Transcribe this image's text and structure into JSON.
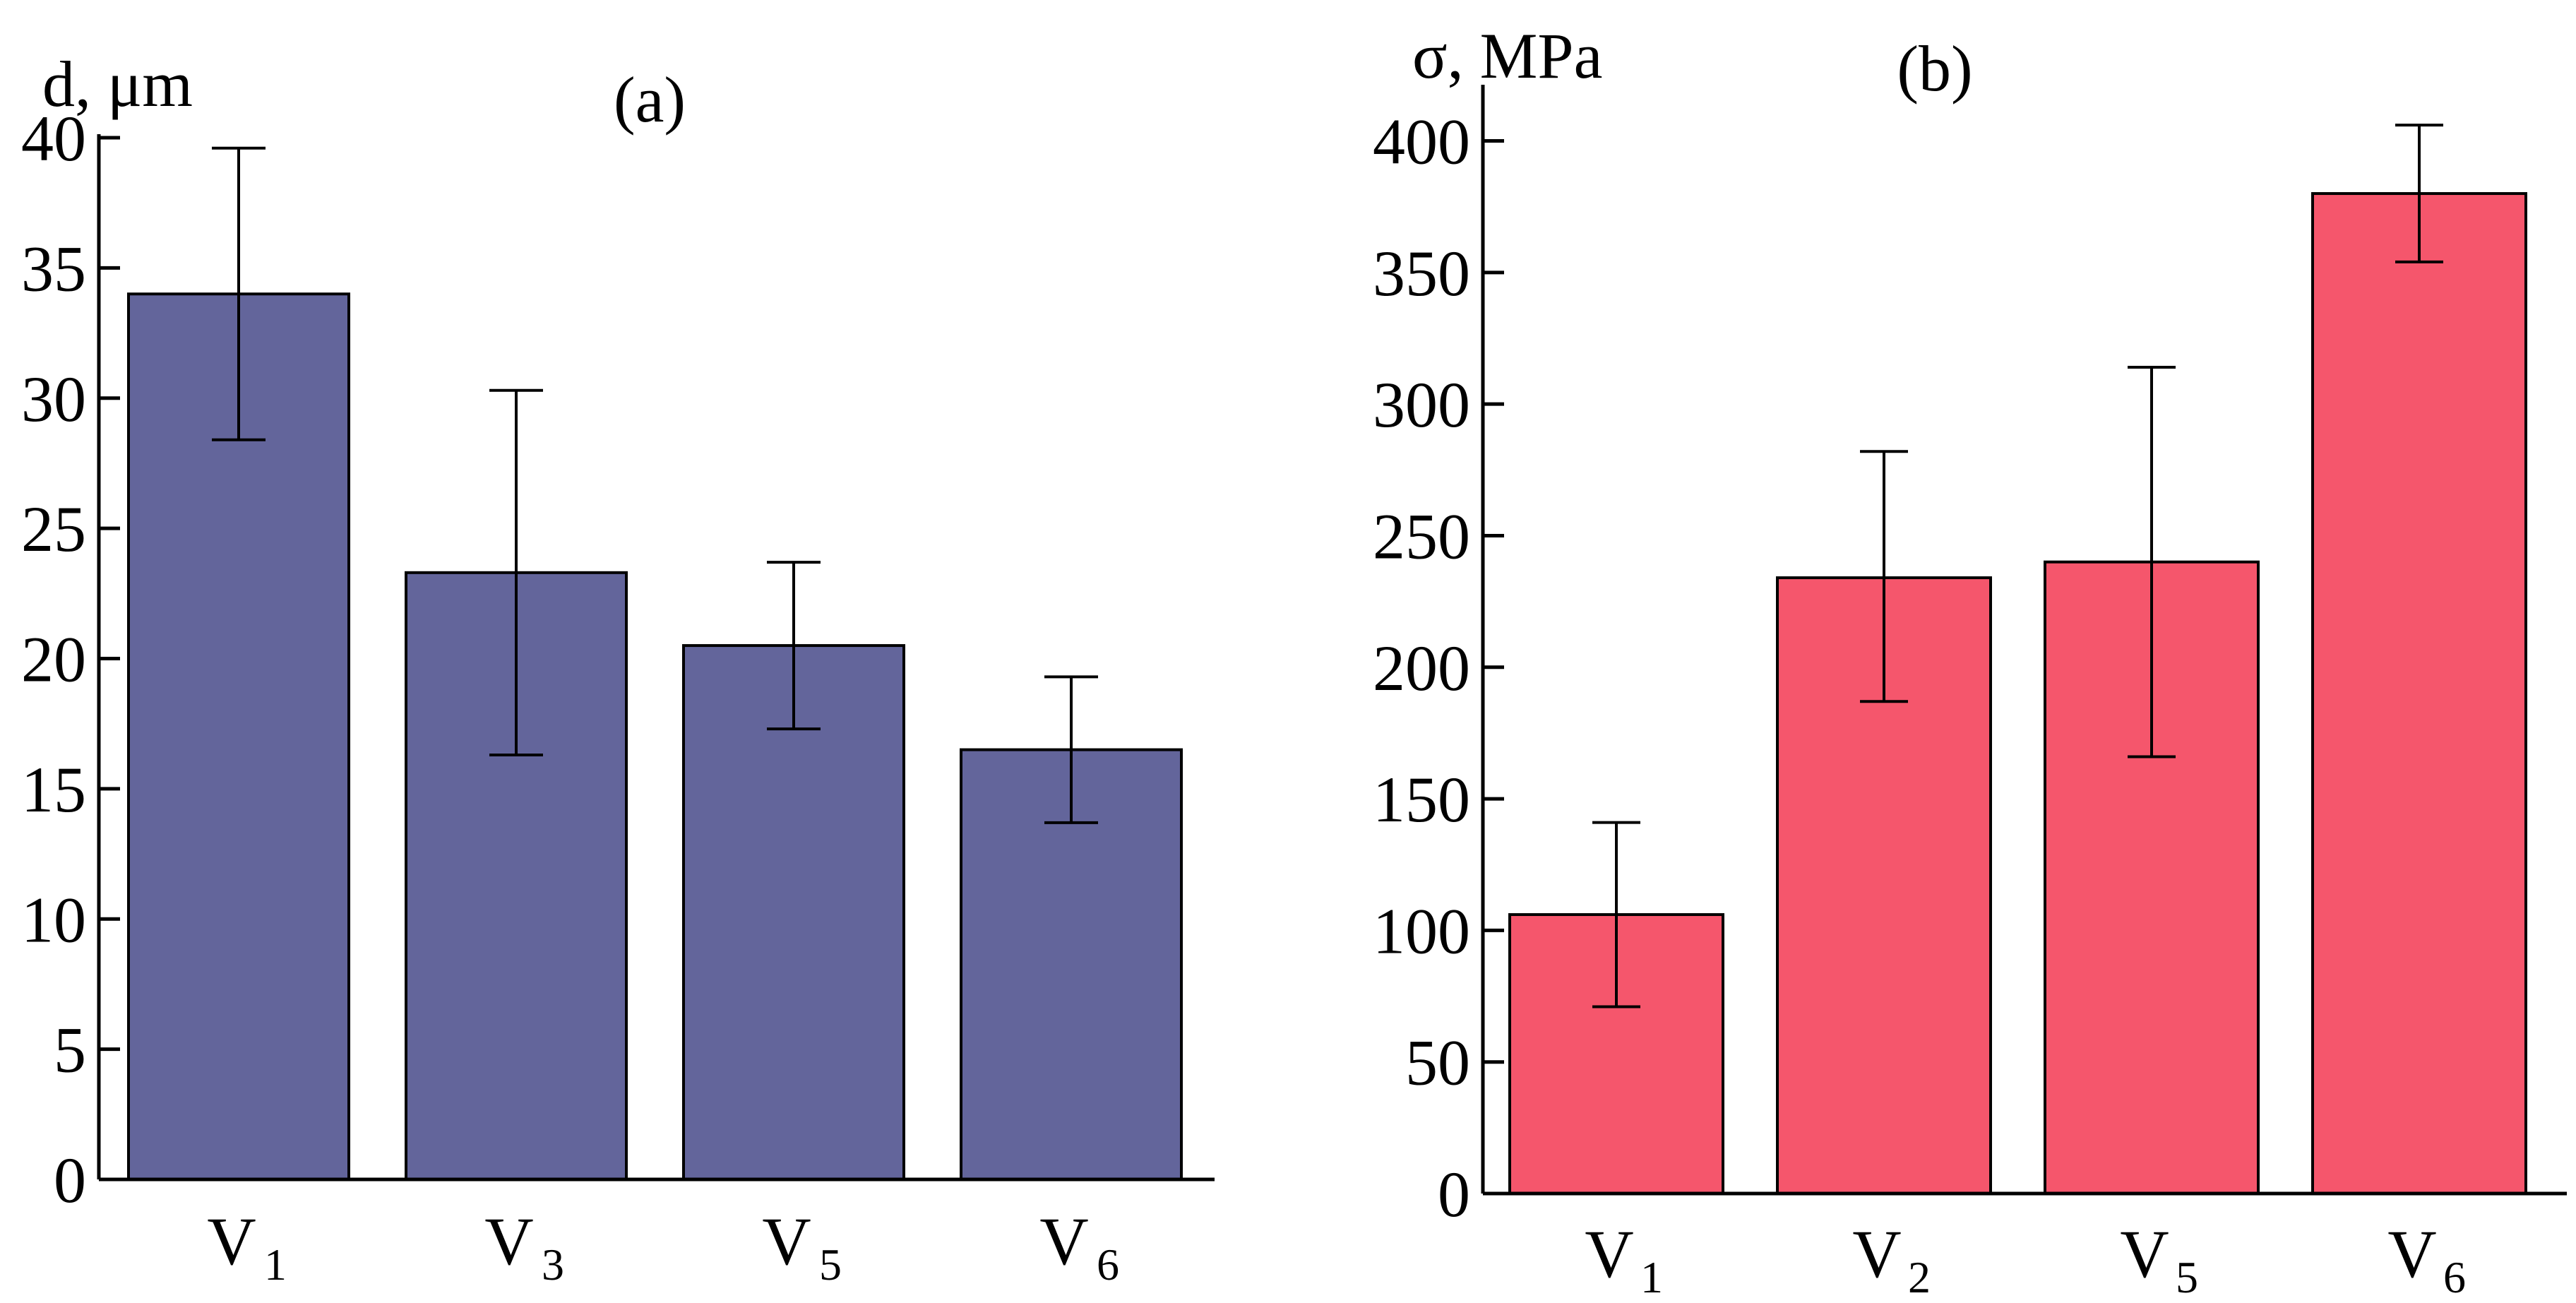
{
  "chart_data": [
    {
      "type": "bar",
      "panel_label": "(a)",
      "ylabel": "d, μm",
      "xlabel": "",
      "ylim": [
        0,
        40
      ],
      "yticks": [
        0,
        5,
        10,
        15,
        20,
        25,
        30,
        35,
        40
      ],
      "categories": [
        {
          "main": "V",
          "sub": "1"
        },
        {
          "main": "V",
          "sub": "3"
        },
        {
          "main": "V",
          "sub": "5"
        },
        {
          "main": "V",
          "sub": "6"
        }
      ],
      "values": [
        34.0,
        23.3,
        20.5,
        16.5
      ],
      "errors_low": [
        28.4,
        16.3,
        17.3,
        13.7
      ],
      "errors_high": [
        39.6,
        30.3,
        23.7,
        19.3
      ],
      "color": "#63659b",
      "grid": false
    },
    {
      "type": "bar",
      "panel_label": "(b)",
      "ylabel": "σ, MPa",
      "xlabel": "",
      "ylim": [
        0,
        420
      ],
      "yticks": [
        0,
        50,
        100,
        150,
        200,
        250,
        300,
        350,
        400
      ],
      "categories": [
        {
          "main": "V",
          "sub": "1"
        },
        {
          "main": "V",
          "sub": "2"
        },
        {
          "main": "V",
          "sub": "5"
        },
        {
          "main": "V",
          "sub": "6"
        }
      ],
      "values": [
        106,
        234,
        240,
        380
      ],
      "errors_low": [
        71,
        187,
        166,
        354
      ],
      "errors_high": [
        141,
        282,
        314,
        406
      ],
      "color": "#f5566c",
      "grid": false
    }
  ]
}
